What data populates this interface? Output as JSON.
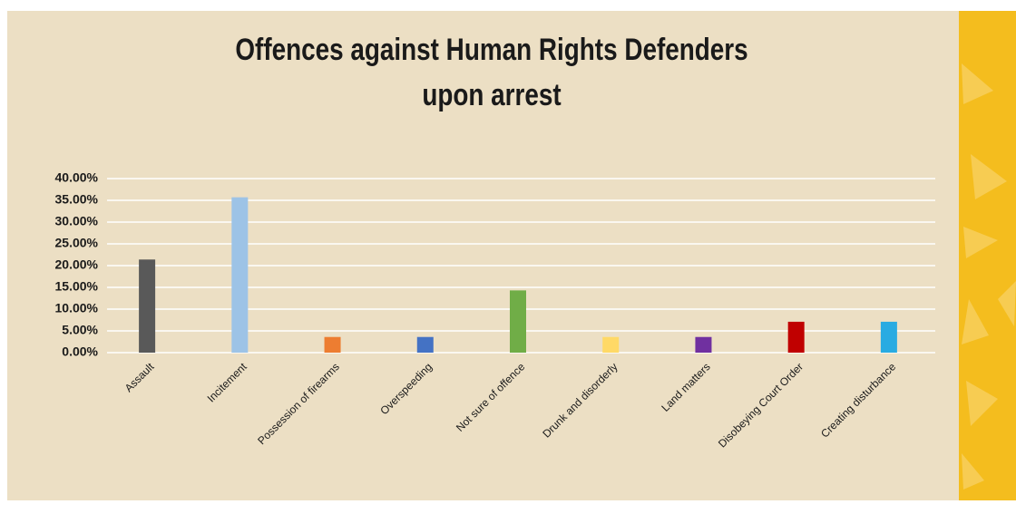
{
  "chart_data": {
    "type": "bar",
    "title": "Offences against Human Rights Defenders",
    "subtitle": "upon arrest",
    "categories": [
      "Assault",
      "Incitement",
      "Possession of firearms",
      "Overspeeding",
      "Not sure of offence",
      "Drunk and disorderly",
      "Land matters",
      "Disobeying Court Order",
      "Creating disturbance"
    ],
    "values": [
      21.4,
      35.7,
      3.6,
      3.6,
      14.3,
      3.6,
      3.6,
      7.1,
      7.1
    ],
    "colors": [
      "#595959",
      "#9dc3e6",
      "#ed7d31",
      "#4472c4",
      "#70ad47",
      "#ffd966",
      "#7030a0",
      "#c00000",
      "#29abe2"
    ],
    "ylim": [
      0,
      40
    ],
    "yticks": [
      {
        "value": 0,
        "label": "0.00%"
      },
      {
        "value": 5,
        "label": "5.00%"
      },
      {
        "value": 10,
        "label": "10.00%"
      },
      {
        "value": 15,
        "label": "15.00%"
      },
      {
        "value": 20,
        "label": "20.00%"
      },
      {
        "value": 25,
        "label": "25.00%"
      },
      {
        "value": 30,
        "label": "30.00%"
      },
      {
        "value": 35,
        "label": "35.00%"
      },
      {
        "value": 40,
        "label": "40.00%"
      }
    ],
    "grid": true
  }
}
